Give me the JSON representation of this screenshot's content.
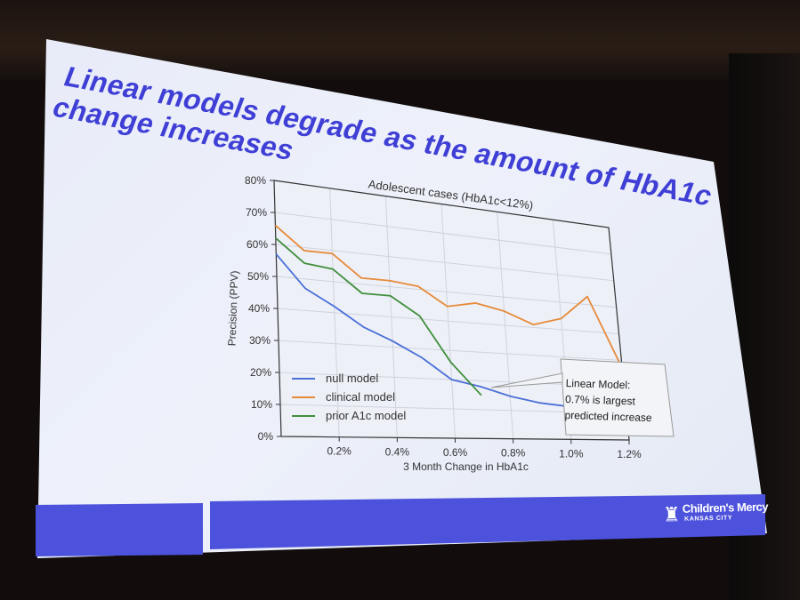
{
  "slide": {
    "title_line1": "Linear models degrade as the amount of HbA1c",
    "title_line2": "change increases"
  },
  "brand": {
    "name": "Children's Mercy",
    "sub": "KANSAS CITY",
    "icon": "children-mercy-logo-icon"
  },
  "colors": {
    "title": "#3f3fd6",
    "band": "#4d52dc",
    "null_model": "#4a6fd8",
    "clinical_model": "#e68a3a",
    "prior_model": "#3f8f3c"
  },
  "callout": {
    "line1": "Linear Model:",
    "line2": "0.7% is largest",
    "line3": "predicted increase"
  },
  "chart_data": {
    "type": "line",
    "title": "Adolescent cases (HbA1c<12%)",
    "xlabel": "3 Month Change in HbA1c",
    "ylabel": "Precision (PPV)",
    "xlim": [
      0.0,
      1.2
    ],
    "ylim": [
      0,
      80
    ],
    "x_ticks": [
      0.2,
      0.4,
      0.6,
      0.8,
      1.0,
      1.2
    ],
    "x_tick_labels": [
      "0.2%",
      "0.4%",
      "0.6%",
      "0.8%",
      "1.0%",
      "1.2%"
    ],
    "y_ticks": [
      0,
      10,
      20,
      30,
      40,
      50,
      60,
      70,
      80
    ],
    "y_tick_labels": [
      "0%",
      "10%",
      "20%",
      "30%",
      "40%",
      "50%",
      "60%",
      "70%",
      "80%"
    ],
    "grid": true,
    "legend_position": "bottom-left",
    "series": [
      {
        "name": "null model",
        "color": "#4a6fd8",
        "x": [
          0.0,
          0.1,
          0.2,
          0.3,
          0.4,
          0.5,
          0.6,
          0.7,
          0.8,
          0.9,
          1.0
        ],
        "values": [
          57,
          47,
          42,
          36,
          32,
          27,
          20,
          18,
          15,
          13,
          12
        ]
      },
      {
        "name": "clinical model",
        "color": "#e68a3a",
        "x": [
          0.0,
          0.1,
          0.2,
          0.3,
          0.4,
          0.5,
          0.6,
          0.7,
          0.8,
          0.9,
          1.0,
          1.1,
          1.2
        ],
        "values": [
          66,
          59,
          59,
          52,
          52,
          51,
          45,
          47,
          45,
          41,
          44,
          53,
          27
        ]
      },
      {
        "name": "prior A1c model",
        "color": "#3f8f3c",
        "x": [
          0.0,
          0.1,
          0.2,
          0.3,
          0.4,
          0.5,
          0.6,
          0.7
        ],
        "values": [
          62,
          55,
          54,
          47,
          47,
          41,
          26,
          15
        ]
      }
    ]
  }
}
